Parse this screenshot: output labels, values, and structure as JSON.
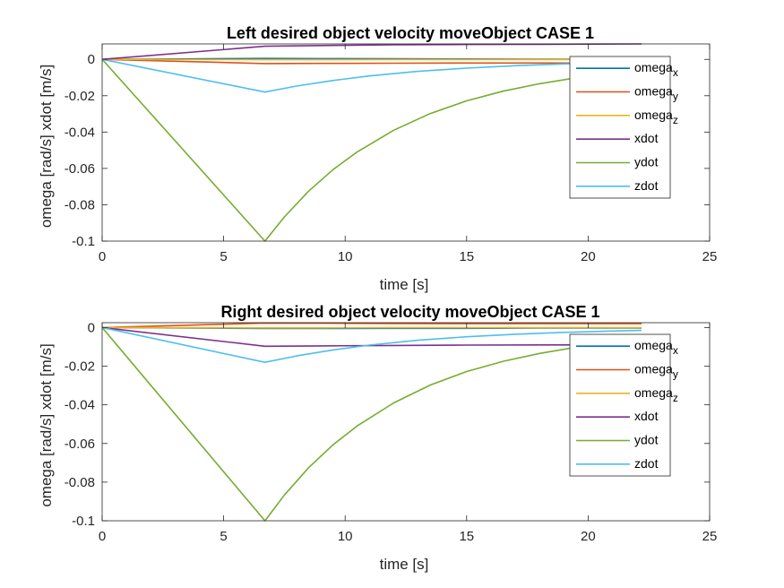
{
  "chart_data": [
    {
      "type": "line",
      "title": "Left desired object velocity moveObject CASE 1",
      "xlabel": "time [s]",
      "ylabel": "omega [rad/s] xdot [m/s]",
      "xlim": [
        0,
        25
      ],
      "ylim": [
        -0.1,
        0.0085
      ],
      "xticks": [
        0,
        5,
        10,
        15,
        20,
        25
      ],
      "xtick_labels": [
        "0",
        "5",
        "10",
        "15",
        "20",
        "25"
      ],
      "yticks": [
        0,
        -0.02,
        -0.04,
        -0.06,
        -0.08,
        -0.1
      ],
      "ytick_labels": [
        "0",
        "-0.02",
        "-0.04",
        "-0.06",
        "-0.08",
        "-0.1"
      ],
      "grid": false,
      "legend_position": "top-right",
      "series": [
        {
          "name": "omega",
          "sub": "x",
          "color": "#0072BD",
          "x": [
            0,
            6.7,
            9,
            12,
            15,
            18,
            20,
            22.2
          ],
          "y": [
            0,
            0.0005,
            0.0004,
            0.0003,
            0.0002,
            0.0001,
            5e-05,
            0
          ]
        },
        {
          "name": "omega",
          "sub": "y",
          "color": "#D95319",
          "x": [
            0,
            6.7,
            9,
            12,
            15,
            18,
            20,
            22.2
          ],
          "y": [
            0,
            -0.0023,
            -0.0022,
            -0.0021,
            -0.002,
            -0.002,
            -0.002,
            -0.002
          ]
        },
        {
          "name": "omega",
          "sub": "z",
          "color": "#EDB120",
          "x": [
            0,
            6.7,
            9,
            12,
            15,
            18,
            20,
            22.2
          ],
          "y": [
            0,
            -0.0002,
            -0.0002,
            -0.0001,
            -0.0001,
            -0.0001,
            -0.0001,
            -0.0001
          ]
        },
        {
          "name": "xdot",
          "sub": "",
          "color": "#7E2F8E",
          "x": [
            0,
            6.7,
            9,
            12,
            15,
            18,
            20,
            22.2
          ],
          "y": [
            0,
            0.0072,
            0.0076,
            0.008,
            0.0082,
            0.0083,
            0.0084,
            0.0085
          ]
        },
        {
          "name": "ydot",
          "sub": "",
          "color": "#77AC30",
          "x": [
            0,
            6.7,
            7.5,
            8.5,
            9.5,
            10.5,
            12,
            13.5,
            15,
            16.5,
            18,
            19.5,
            21,
            22.2
          ],
          "y": [
            0,
            -0.1,
            -0.0867,
            -0.0725,
            -0.0607,
            -0.0509,
            -0.039,
            -0.0298,
            -0.0228,
            -0.0175,
            -0.0134,
            -0.0102,
            -0.0078,
            -0.0064
          ]
        },
        {
          "name": "zdot",
          "sub": "",
          "color": "#4DBEEE",
          "x": [
            0,
            6.7,
            8,
            9.5,
            11,
            13,
            15,
            17,
            19,
            21,
            22.2
          ],
          "y": [
            0,
            -0.018,
            -0.0147,
            -0.0116,
            -0.0091,
            -0.0066,
            -0.0048,
            -0.0035,
            -0.0025,
            -0.0018,
            -0.0015
          ]
        }
      ]
    },
    {
      "type": "line",
      "title": "Right desired object velocity moveObject CASE 1",
      "xlabel": "time [s]",
      "ylabel": "omega [rad/s] xdot [m/s]",
      "xlim": [
        0,
        25
      ],
      "ylim": [
        -0.1,
        0.0025
      ],
      "xticks": [
        0,
        5,
        10,
        15,
        20,
        25
      ],
      "xtick_labels": [
        "0",
        "5",
        "10",
        "15",
        "20",
        "25"
      ],
      "yticks": [
        0,
        -0.02,
        -0.04,
        -0.06,
        -0.08,
        -0.1
      ],
      "ytick_labels": [
        "0",
        "-0.02",
        "-0.04",
        "-0.06",
        "-0.08",
        "-0.1"
      ],
      "grid": false,
      "legend_position": "top-right",
      "series": [
        {
          "name": "omega",
          "sub": "x",
          "color": "#0072BD",
          "x": [
            0,
            6.7,
            9,
            12,
            15,
            18,
            20,
            22.2
          ],
          "y": [
            0,
            -0.0005,
            -0.0005,
            -0.0004,
            -0.0004,
            -0.0003,
            -0.0003,
            -0.0003
          ]
        },
        {
          "name": "omega",
          "sub": "y",
          "color": "#D95319",
          "x": [
            0,
            6.7,
            9,
            12,
            15,
            18,
            20,
            22.2
          ],
          "y": [
            0,
            0.0023,
            0.0022,
            0.0021,
            0.002,
            0.002,
            0.002,
            0.002
          ]
        },
        {
          "name": "omega",
          "sub": "z",
          "color": "#EDB120",
          "x": [
            0,
            6.7,
            9,
            12,
            15,
            18,
            20,
            22.2
          ],
          "y": [
            0,
            -0.0002,
            -0.0002,
            -0.0001,
            -0.0001,
            -0.0001,
            -0.0001,
            -0.0001
          ]
        },
        {
          "name": "xdot",
          "sub": "",
          "color": "#7E2F8E",
          "x": [
            0,
            6.7,
            9,
            12,
            15,
            18,
            20,
            22.2
          ],
          "y": [
            0,
            -0.0097,
            -0.0095,
            -0.0093,
            -0.0091,
            -0.009,
            -0.009,
            -0.009
          ]
        },
        {
          "name": "ydot",
          "sub": "",
          "color": "#77AC30",
          "x": [
            0,
            6.7,
            7.5,
            8.5,
            9.5,
            10.5,
            12,
            13.5,
            15,
            16.5,
            18,
            19.5,
            21,
            22.2
          ],
          "y": [
            0,
            -0.1,
            -0.0867,
            -0.0725,
            -0.0607,
            -0.0509,
            -0.039,
            -0.0298,
            -0.0228,
            -0.0175,
            -0.0134,
            -0.0102,
            -0.0078,
            -0.0064
          ]
        },
        {
          "name": "zdot",
          "sub": "",
          "color": "#4DBEEE",
          "x": [
            0,
            6.7,
            8,
            9.5,
            11,
            13,
            15,
            17,
            19,
            21,
            22.2
          ],
          "y": [
            0,
            -0.018,
            -0.0147,
            -0.0116,
            -0.0091,
            -0.0066,
            -0.0048,
            -0.0035,
            -0.0025,
            -0.0018,
            -0.0015
          ]
        }
      ]
    }
  ]
}
